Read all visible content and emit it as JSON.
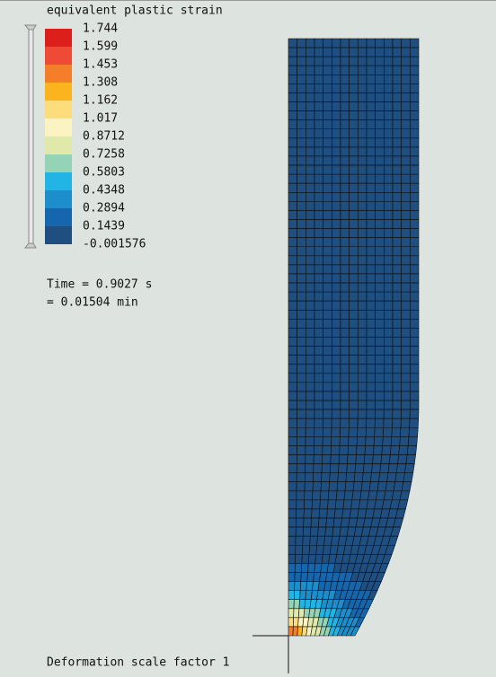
{
  "legend": {
    "title": "equivalent plastic strain",
    "items": [
      {
        "label": "1.744",
        "color": "#dc1f1a"
      },
      {
        "label": "1.599",
        "color": "#ef4a35"
      },
      {
        "label": "1.453",
        "color": "#f57e2a"
      },
      {
        "label": "1.308",
        "color": "#fbb41d"
      },
      {
        "label": "1.162",
        "color": "#fddc7c"
      },
      {
        "label": "1.017",
        "color": "#fbf4c2"
      },
      {
        "label": "0.8712",
        "color": "#e0e9a9"
      },
      {
        "label": "0.7258",
        "color": "#94d3b6"
      },
      {
        "label": "0.5803",
        "color": "#23b4e6"
      },
      {
        "label": "0.4348",
        "color": "#1b8ecb"
      },
      {
        "label": "0.2894",
        "color": "#1566ad"
      },
      {
        "label": "0.1439",
        "color": "#1e4f80"
      },
      {
        "label": "-0.001576",
        "color": null
      }
    ]
  },
  "time": {
    "seconds": "Time = 0.9027 s",
    "minutes": "= 0.01504 min"
  },
  "footer": "Deformation scale factor 1"
}
